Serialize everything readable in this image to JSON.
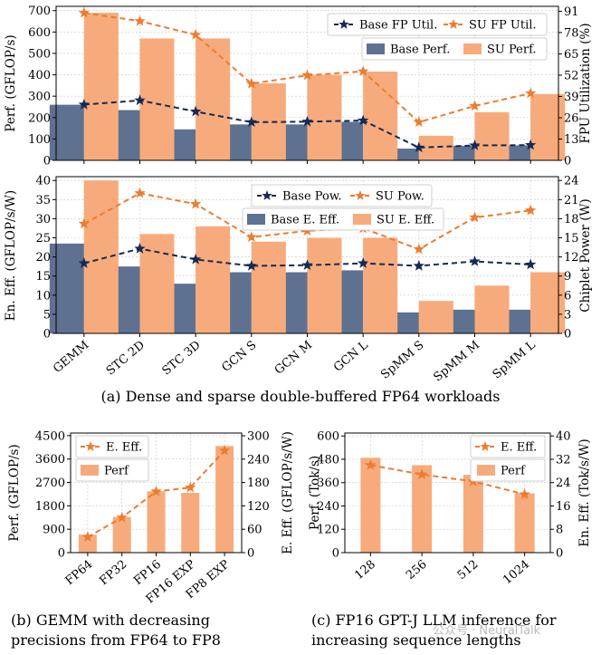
{
  "chart_data": [
    {
      "id": "a_top",
      "type": "bar+line",
      "categories": [
        "GEMM",
        "STC 2D",
        "STC 3D",
        "GCN S",
        "GCN M",
        "GCN L",
        "SpMM S",
        "SpMM M",
        "SpMM L"
      ],
      "ylabel": "Perf. (GFLOP/s)",
      "y2label": "FPU Utilization (%)",
      "ylim": [
        0,
        720
      ],
      "yticks": [
        "0",
        "100",
        "200",
        "300",
        "400",
        "500",
        "600",
        "700"
      ],
      "y2lim": [
        0,
        94
      ],
      "y2ticks": [
        "0",
        "13",
        "26",
        "39",
        "52",
        "65",
        "78",
        "91"
      ],
      "bar_series": [
        {
          "name": "Base Perf.",
          "color": "#5f7190",
          "values": [
            260,
            235,
            145,
            168,
            168,
            180,
            55,
            68,
            70
          ]
        },
        {
          "name": "SU Perf.",
          "color": "#f7ab7c",
          "values": [
            690,
            570,
            570,
            360,
            400,
            415,
            115,
            225,
            310
          ]
        }
      ],
      "line_series": [
        {
          "name": "Base FP Util.",
          "color": "#142a55",
          "marker": "star",
          "style": "dashed",
          "values": [
            34,
            36.6,
            29.8,
            23.3,
            23.6,
            24.3,
            7.8,
            9.1,
            9.3
          ]
        },
        {
          "name": "SU FP Util.",
          "color": "#ec7c30",
          "marker": "star",
          "style": "dashed",
          "values": [
            90,
            85,
            76.6,
            46.8,
            51.9,
            54.3,
            23.3,
            33.2,
            40.9
          ]
        }
      ]
    },
    {
      "id": "a_bottom",
      "type": "bar+line",
      "categories": [
        "GEMM",
        "STC 2D",
        "STC 3D",
        "GCN S",
        "GCN M",
        "GCN L",
        "SpMM S",
        "SpMM M",
        "SpMM L"
      ],
      "ylabel": "En. Eff. (GFLOP/s/W)",
      "y2label": "Chiplet Power (W)",
      "ylim": [
        0,
        41
      ],
      "yticks": [
        "0",
        "5",
        "10",
        "15",
        "20",
        "25",
        "30",
        "35",
        "40"
      ],
      "y2lim": [
        0,
        24.6
      ],
      "y2ticks": [
        "0",
        "3",
        "6",
        "9",
        "12",
        "15",
        "18",
        "21",
        "24"
      ],
      "bar_series": [
        {
          "name": "Base E. Eff.",
          "color": "#5f7190",
          "values": [
            23.5,
            17.5,
            13,
            16,
            16,
            16.5,
            5.5,
            6.2,
            6.2
          ]
        },
        {
          "name": "SU E. Eff.",
          "color": "#f7ab7c",
          "values": [
            40,
            26,
            28,
            24,
            25,
            25,
            8.5,
            12.5,
            16
          ]
        }
      ],
      "line_series": [
        {
          "name": "Base Pow.",
          "color": "#142a55",
          "marker": "star",
          "style": "dashed",
          "values": [
            11,
            13.3,
            11.6,
            10.6,
            10.7,
            11,
            10.6,
            11.3,
            10.8
          ]
        },
        {
          "name": "SU Pow.",
          "color": "#ec7c30",
          "marker": "star",
          "style": "dashed",
          "values": [
            17.2,
            22,
            20.3,
            15.1,
            16.1,
            16.5,
            13.2,
            18.2,
            19.3
          ]
        }
      ]
    },
    {
      "id": "b",
      "type": "bar+line",
      "categories": [
        "FP64",
        "FP32",
        "FP16",
        "FP16 EXP",
        "FP8 EXP"
      ],
      "ylabel": "Perf. (GFLOP/s)",
      "y2label": "E. Eff. (GFLOP/s/W)",
      "ylim": [
        0,
        4600
      ],
      "yticks": [
        "0",
        "900",
        "1800",
        "2700",
        "3600",
        "4500"
      ],
      "y2lim": [
        0,
        307
      ],
      "y2ticks": [
        "0",
        "60",
        "120",
        "180",
        "240",
        "300"
      ],
      "bar_series": [
        {
          "name": "Perf",
          "color": "#f7ab7c",
          "values": [
            690,
            1370,
            2360,
            2300,
            4100
          ]
        }
      ],
      "line_series": [
        {
          "name": "E. Eff.",
          "color": "#ec7c30",
          "marker": "star",
          "style": "dashed",
          "values": [
            40,
            90,
            157,
            167,
            262
          ]
        }
      ]
    },
    {
      "id": "c",
      "type": "bar+line",
      "categories": [
        "128",
        "256",
        "512",
        "1024"
      ],
      "ylabel": "Perf. (Tok/s)",
      "y2label": "En. Eff. (Tok/s/W)",
      "ylim": [
        0,
        615
      ],
      "yticks": [
        "0",
        "120",
        "240",
        "360",
        "480",
        "600"
      ],
      "y2lim": [
        0,
        41
      ],
      "y2ticks": [
        "0",
        "8",
        "16",
        "24",
        "32",
        "40"
      ],
      "bar_series": [
        {
          "name": "Perf",
          "color": "#f7ab7c",
          "values": [
            488,
            450,
            400,
            305
          ]
        }
      ],
      "line_series": [
        {
          "name": "E. Eff.",
          "color": "#ec7c30",
          "marker": "star",
          "style": "dashed",
          "values": [
            30,
            26.8,
            24.4,
            20
          ]
        }
      ]
    }
  ],
  "captions": {
    "a": "(a) Dense and sparse double-buffered FP64 workloads",
    "b_line1": "(b) GEMM with decreasing",
    "b_line2": "precisions from FP64 to FP8",
    "c_line1": "(c) FP16 GPT-J LLM inference for",
    "c_line2": "increasing sequence lengths"
  },
  "watermark": "公众号 · NeuralTalk"
}
